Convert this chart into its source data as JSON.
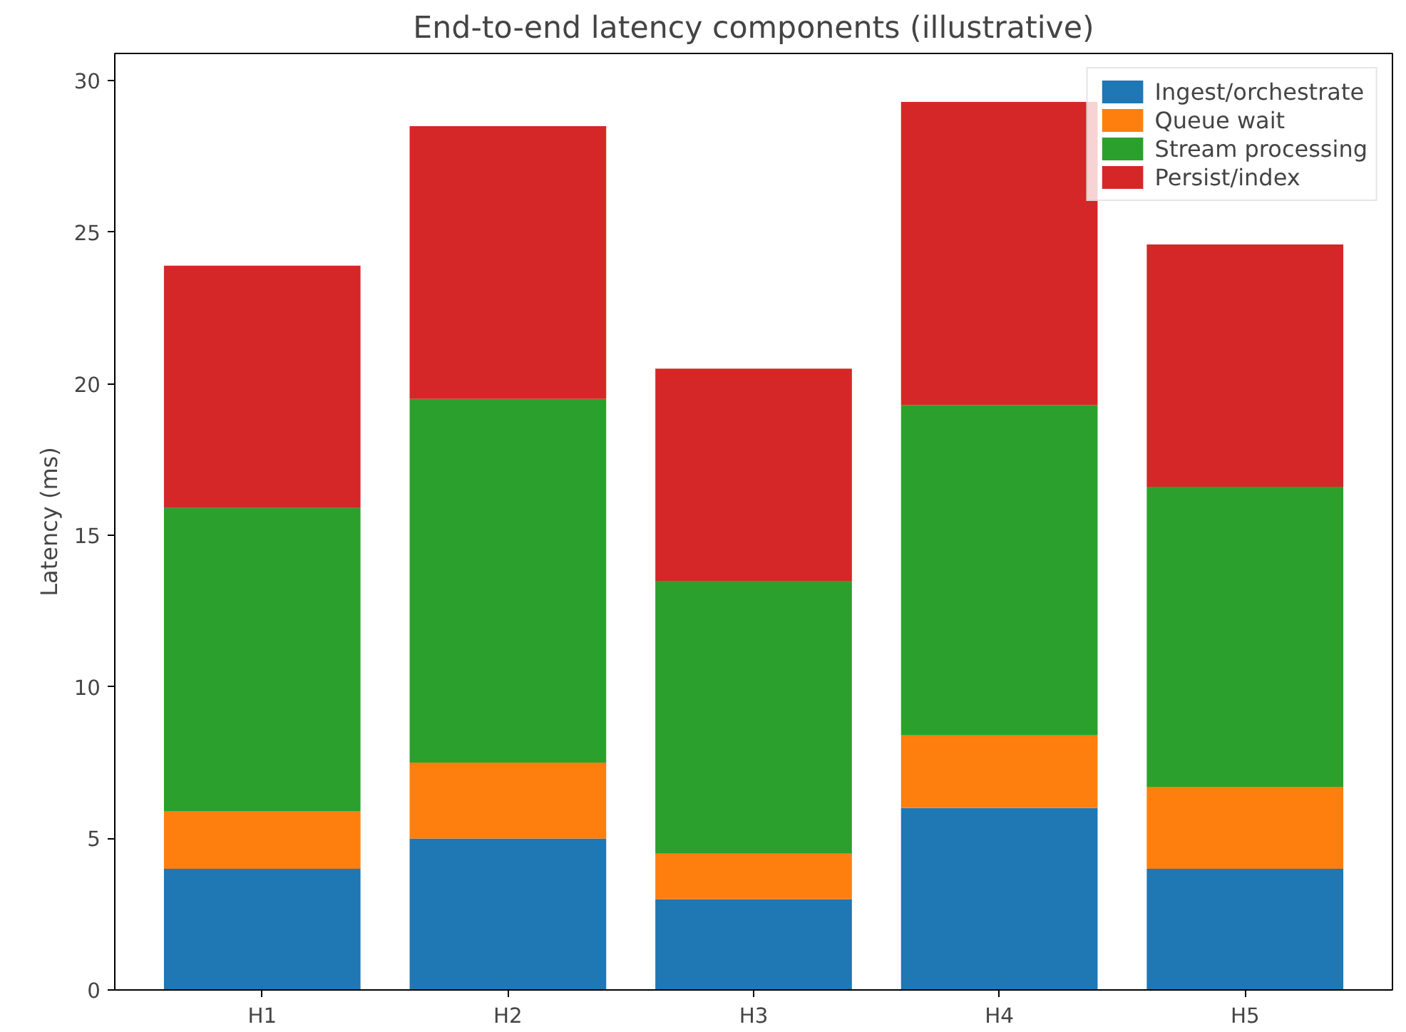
{
  "chart_data": {
    "type": "bar",
    "title": "End-to-end latency components (illustrative)",
    "ylabel": "Latency (ms)",
    "categories": [
      "H1",
      "H2",
      "H3",
      "H4",
      "H5"
    ],
    "stacked": true,
    "series": [
      {
        "name": "Ingest/orchestrate",
        "color": "#1f77b4",
        "values": [
          4.0,
          5.0,
          3.0,
          6.0,
          4.0
        ]
      },
      {
        "name": "Queue wait",
        "color": "#ff7f0e",
        "values": [
          1.9,
          2.5,
          1.5,
          2.4,
          2.7
        ]
      },
      {
        "name": "Stream processing",
        "color": "#2ca02c",
        "values": [
          10.0,
          12.0,
          9.0,
          10.9,
          9.9
        ]
      },
      {
        "name": "Persist/index",
        "color": "#d62728",
        "values": [
          8.0,
          9.0,
          7.0,
          10.0,
          8.0
        ]
      }
    ],
    "ylim": [
      0,
      30.9
    ],
    "yticks": [
      0,
      5,
      10,
      15,
      20,
      25,
      30
    ],
    "grid": false,
    "legend": "top right"
  }
}
